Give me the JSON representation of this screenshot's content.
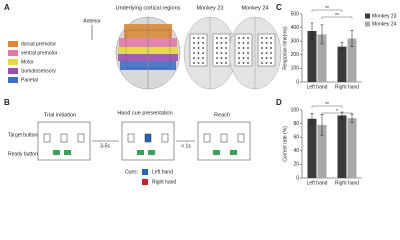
{
  "panel_labels": [
    "A",
    "B",
    "C",
    "D"
  ],
  "panel_a": {
    "anterior": "Anterior",
    "titles": [
      "Underlying cortical regions",
      "Monkey 23",
      "Monkey 24"
    ],
    "regions": [
      {
        "label": "dorsal premotor",
        "color": "#d98a3a"
      },
      {
        "label": "ventral premotor",
        "color": "#e27aa8"
      },
      {
        "label": "Motor",
        "color": "#e6d84a"
      },
      {
        "label": "Somatosensory",
        "color": "#9b4fb0"
      },
      {
        "label": "Parietal",
        "color": "#3f6fc4"
      }
    ]
  },
  "panel_b": {
    "stages": [
      "Trial initiation",
      "Hand cue presentation",
      "Reach"
    ],
    "target_buttons": "Target buttons",
    "ready_buttons": "Ready buttons",
    "delays": [
      "3-5s",
      "< 1s"
    ],
    "cues_label": "Cues:",
    "cues": [
      {
        "label": "Left hand",
        "color": "#2a63b0"
      },
      {
        "label": "Right hand",
        "color": "#c4222c"
      }
    ]
  },
  "chart_data": [
    {
      "type": "bar",
      "y_label": "Response time(ms)",
      "categories": [
        "Left hand",
        "Right hand"
      ],
      "series": [
        {
          "name": "Monkey 23",
          "color": "#3a3a3a",
          "values": [
            375,
            260
          ],
          "errors": [
            60,
            30
          ]
        },
        {
          "name": "Monkey 24",
          "color": "#a8a8a8",
          "values": [
            350,
            320
          ],
          "errors": [
            70,
            60
          ]
        }
      ],
      "ylim": [
        0,
        500
      ],
      "yticks": [
        0,
        100,
        200,
        300,
        400,
        500
      ],
      "legend": true,
      "annotations": [
        "**",
        "**"
      ]
    },
    {
      "type": "bar",
      "y_label": "Correct rate (%)",
      "categories": [
        "Left hand",
        "Right hand"
      ],
      "series": [
        {
          "name": "Monkey 23",
          "color": "#3a3a3a",
          "values": [
            87,
            92
          ],
          "errors": [
            8,
            5
          ]
        },
        {
          "name": "Monkey 24",
          "color": "#a8a8a8",
          "values": [
            78,
            88
          ],
          "errors": [
            15,
            6
          ]
        }
      ],
      "ylim": [
        0,
        100
      ],
      "yticks": [
        0,
        20,
        40,
        60,
        80,
        100
      ],
      "legend": false,
      "annotations": [
        "**",
        "*"
      ]
    }
  ]
}
